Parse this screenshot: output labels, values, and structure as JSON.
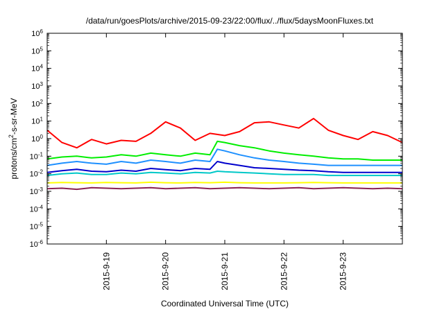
{
  "chart_data": {
    "type": "line",
    "title": "/data/run/goesPlots/archive/2015-09-23/22:00/flux/../flux/5daysMoonFluxes.txt",
    "xlabel": "Coordinated Universal Time (UTC)",
    "ylabel": {
      "prefix": "protons/cm",
      "superscript": "2",
      "suffix": "-s-sr-MeV"
    },
    "yscale": "log",
    "ylim": [
      "1e-6",
      "1e6"
    ],
    "y_ticks": [
      {
        "base": "10",
        "exp": "6"
      },
      {
        "base": "10",
        "exp": "5"
      },
      {
        "base": "10",
        "exp": "4"
      },
      {
        "base": "10",
        "exp": "3"
      },
      {
        "base": "10",
        "exp": "2"
      },
      {
        "base": "10",
        "exp": "1"
      },
      {
        "base": "10",
        "exp": "0"
      },
      {
        "base": "10",
        "exp": "-1"
      },
      {
        "base": "10",
        "exp": "-2"
      },
      {
        "base": "10",
        "exp": "-3"
      },
      {
        "base": "10",
        "exp": "-4"
      },
      {
        "base": "10",
        "exp": "-5"
      },
      {
        "base": "10",
        "exp": "-6"
      }
    ],
    "xlim": [
      "2015-09-18T00:00",
      "2015-09-24T00:00"
    ],
    "x_ticks": [
      "2015-9-19",
      "2015-9-20",
      "2015-9-21",
      "2015-9-22",
      "2015-9-23"
    ],
    "x_tick_dates": [
      "2015-09-19T00:00",
      "2015-09-20T00:00",
      "2015-09-21T00:00",
      "2015-09-22T00:00",
      "2015-09-23T00:00"
    ],
    "grid": false,
    "legend": "none",
    "series": [
      {
        "color": "#ff0000",
        "times": [
          "2015-09-18T00:00",
          "2015-09-18T06:00",
          "2015-09-18T12:00",
          "2015-09-18T18:00",
          "2015-09-19T00:00",
          "2015-09-19T06:00",
          "2015-09-19T12:00",
          "2015-09-19T18:00",
          "2015-09-20T00:00",
          "2015-09-20T06:00",
          "2015-09-20T12:00",
          "2015-09-20T18:00",
          "2015-09-21T00:00",
          "2015-09-21T06:00",
          "2015-09-21T12:00",
          "2015-09-21T18:00",
          "2015-09-22T00:00",
          "2015-09-22T06:00",
          "2015-09-22T12:00",
          "2015-09-22T18:00",
          "2015-09-23T00:00",
          "2015-09-23T06:00",
          "2015-09-23T12:00",
          "2015-09-23T18:00",
          "2015-09-24T00:00"
        ],
        "values": [
          3.0,
          0.6,
          0.3,
          0.9,
          0.5,
          0.8,
          0.7,
          2.0,
          9.0,
          4.0,
          0.8,
          2.0,
          1.5,
          2.5,
          8.0,
          9.0,
          6.0,
          4.0,
          14.0,
          3.0,
          1.5,
          0.9,
          2.5,
          1.5,
          0.6
        ]
      },
      {
        "color": "#00ee00",
        "times": [
          "2015-09-18T00:00",
          "2015-09-18T06:00",
          "2015-09-18T12:00",
          "2015-09-18T18:00",
          "2015-09-19T00:00",
          "2015-09-19T06:00",
          "2015-09-19T12:00",
          "2015-09-19T18:00",
          "2015-09-20T00:00",
          "2015-09-20T06:00",
          "2015-09-20T12:00",
          "2015-09-20T18:00",
          "2015-09-20T21:00",
          "2015-09-21T00:00",
          "2015-09-21T06:00",
          "2015-09-21T12:00",
          "2015-09-21T18:00",
          "2015-09-22T00:00",
          "2015-09-22T06:00",
          "2015-09-22T12:00",
          "2015-09-22T18:00",
          "2015-09-23T00:00",
          "2015-09-23T06:00",
          "2015-09-23T12:00",
          "2015-09-23T18:00",
          "2015-09-24T00:00"
        ],
        "values": [
          0.07,
          0.09,
          0.1,
          0.08,
          0.09,
          0.12,
          0.1,
          0.15,
          0.12,
          0.1,
          0.15,
          0.12,
          0.7,
          0.6,
          0.4,
          0.3,
          0.2,
          0.15,
          0.12,
          0.1,
          0.08,
          0.07,
          0.07,
          0.06,
          0.06,
          0.06
        ]
      },
      {
        "color": "#1e90ff",
        "times": [
          "2015-09-18T00:00",
          "2015-09-18T06:00",
          "2015-09-18T12:00",
          "2015-09-18T18:00",
          "2015-09-19T00:00",
          "2015-09-19T06:00",
          "2015-09-19T12:00",
          "2015-09-19T18:00",
          "2015-09-20T00:00",
          "2015-09-20T06:00",
          "2015-09-20T12:00",
          "2015-09-20T18:00",
          "2015-09-20T21:00",
          "2015-09-21T00:00",
          "2015-09-21T06:00",
          "2015-09-21T12:00",
          "2015-09-21T18:00",
          "2015-09-22T00:00",
          "2015-09-22T06:00",
          "2015-09-22T12:00",
          "2015-09-22T18:00",
          "2015-09-23T00:00",
          "2015-09-23T06:00",
          "2015-09-23T12:00",
          "2015-09-23T18:00",
          "2015-09-24T00:00"
        ],
        "values": [
          0.03,
          0.04,
          0.05,
          0.04,
          0.035,
          0.05,
          0.04,
          0.06,
          0.05,
          0.04,
          0.06,
          0.05,
          0.25,
          0.2,
          0.12,
          0.08,
          0.06,
          0.05,
          0.04,
          0.035,
          0.03,
          0.03,
          0.03,
          0.03,
          0.03,
          0.03
        ]
      },
      {
        "color": "#0000cc",
        "times": [
          "2015-09-18T00:00",
          "2015-09-18T06:00",
          "2015-09-18T12:00",
          "2015-09-18T18:00",
          "2015-09-19T00:00",
          "2015-09-19T06:00",
          "2015-09-19T12:00",
          "2015-09-19T18:00",
          "2015-09-20T00:00",
          "2015-09-20T06:00",
          "2015-09-20T12:00",
          "2015-09-20T18:00",
          "2015-09-20T21:00",
          "2015-09-21T00:00",
          "2015-09-21T06:00",
          "2015-09-21T12:00",
          "2015-09-21T18:00",
          "2015-09-22T00:00",
          "2015-09-22T06:00",
          "2015-09-22T12:00",
          "2015-09-22T18:00",
          "2015-09-23T00:00",
          "2015-09-23T06:00",
          "2015-09-23T12:00",
          "2015-09-23T18:00",
          "2015-09-24T00:00"
        ],
        "values": [
          0.012,
          0.015,
          0.018,
          0.014,
          0.013,
          0.016,
          0.014,
          0.02,
          0.017,
          0.015,
          0.02,
          0.018,
          0.05,
          0.04,
          0.03,
          0.022,
          0.02,
          0.018,
          0.016,
          0.015,
          0.013,
          0.012,
          0.012,
          0.012,
          0.012,
          0.012
        ]
      },
      {
        "color": "#00c8c8",
        "times": [
          "2015-09-18T00:00",
          "2015-09-18T06:00",
          "2015-09-18T12:00",
          "2015-09-18T18:00",
          "2015-09-19T00:00",
          "2015-09-19T06:00",
          "2015-09-19T12:00",
          "2015-09-19T18:00",
          "2015-09-20T00:00",
          "2015-09-20T06:00",
          "2015-09-20T12:00",
          "2015-09-20T18:00",
          "2015-09-20T21:00",
          "2015-09-21T00:00",
          "2015-09-21T06:00",
          "2015-09-21T12:00",
          "2015-09-21T18:00",
          "2015-09-22T00:00",
          "2015-09-22T06:00",
          "2015-09-22T12:00",
          "2015-09-22T18:00",
          "2015-09-23T00:00",
          "2015-09-23T06:00",
          "2015-09-23T12:00",
          "2015-09-23T18:00",
          "2015-09-24T00:00"
        ],
        "values": [
          0.008,
          0.01,
          0.011,
          0.009,
          0.009,
          0.011,
          0.01,
          0.012,
          0.011,
          0.01,
          0.012,
          0.011,
          0.014,
          0.013,
          0.012,
          0.011,
          0.01,
          0.009,
          0.009,
          0.009,
          0.008,
          0.008,
          0.008,
          0.008,
          0.008,
          0.008
        ]
      },
      {
        "color": "#ffff00",
        "times": [
          "2015-09-18T00:00",
          "2015-09-18T06:00",
          "2015-09-18T12:00",
          "2015-09-18T18:00",
          "2015-09-19T00:00",
          "2015-09-19T06:00",
          "2015-09-19T12:00",
          "2015-09-19T18:00",
          "2015-09-20T00:00",
          "2015-09-20T06:00",
          "2015-09-20T12:00",
          "2015-09-20T18:00",
          "2015-09-21T00:00",
          "2015-09-21T06:00",
          "2015-09-21T12:00",
          "2015-09-21T18:00",
          "2015-09-22T00:00",
          "2015-09-22T06:00",
          "2015-09-22T12:00",
          "2015-09-22T18:00",
          "2015-09-23T00:00",
          "2015-09-23T06:00",
          "2015-09-23T12:00",
          "2015-09-23T18:00",
          "2015-09-24T00:00"
        ],
        "values": [
          0.003,
          0.0032,
          0.0031,
          0.003,
          0.0032,
          0.0031,
          0.003,
          0.0033,
          0.0031,
          0.003,
          0.0032,
          0.0031,
          0.0033,
          0.0031,
          0.003,
          0.003,
          0.003,
          0.0031,
          0.0032,
          0.0031,
          0.003,
          0.003,
          0.003,
          0.003,
          0.003
        ]
      },
      {
        "color": "#8b2252",
        "times": [
          "2015-09-18T00:00",
          "2015-09-18T06:00",
          "2015-09-18T12:00",
          "2015-09-18T18:00",
          "2015-09-19T00:00",
          "2015-09-19T06:00",
          "2015-09-19T12:00",
          "2015-09-19T18:00",
          "2015-09-20T00:00",
          "2015-09-20T06:00",
          "2015-09-20T12:00",
          "2015-09-20T18:00",
          "2015-09-21T00:00",
          "2015-09-21T06:00",
          "2015-09-21T12:00",
          "2015-09-21T18:00",
          "2015-09-22T00:00",
          "2015-09-22T06:00",
          "2015-09-22T12:00",
          "2015-09-22T18:00",
          "2015-09-23T00:00",
          "2015-09-23T06:00",
          "2015-09-23T12:00",
          "2015-09-23T18:00",
          "2015-09-24T00:00"
        ],
        "values": [
          0.0014,
          0.0015,
          0.0013,
          0.0016,
          0.0015,
          0.0014,
          0.0015,
          0.0016,
          0.0014,
          0.0015,
          0.0016,
          0.0014,
          0.0015,
          0.0016,
          0.0015,
          0.0014,
          0.0015,
          0.0016,
          0.0014,
          0.0015,
          0.0016,
          0.0015,
          0.0014,
          0.0015,
          0.0014
        ]
      }
    ]
  }
}
